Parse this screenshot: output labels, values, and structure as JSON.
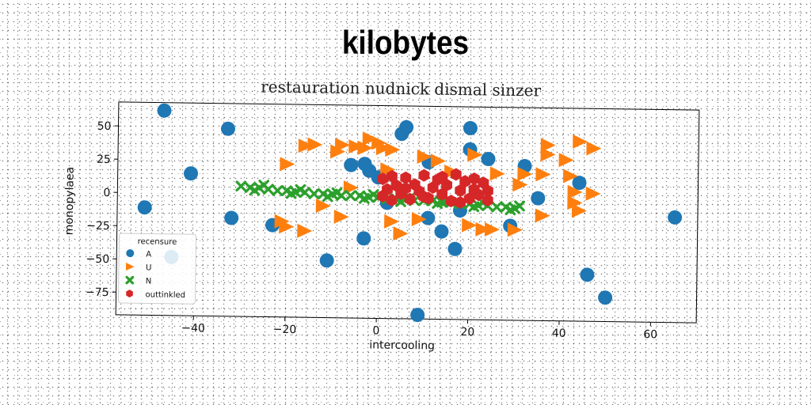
{
  "figure": {
    "title": "kilobytes",
    "subtitle": "restauration nudnick dismal sinzer"
  },
  "chart_data": {
    "type": "scatter",
    "title": "restauration nudnick dismal sinzer",
    "xlabel": "intercooling",
    "ylabel": "monopylaea",
    "xlim": [
      -57,
      70
    ],
    "ylim": [
      -92,
      68
    ],
    "xticks": [
      "−40",
      "−20",
      "0",
      "20",
      "40",
      "60"
    ],
    "xtick_values": [
      -40,
      -20,
      0,
      20,
      40,
      60
    ],
    "yticks": [
      "50",
      "25",
      "0",
      "−25",
      "−50",
      "−75"
    ],
    "ytick_values": [
      50,
      25,
      0,
      -25,
      -50,
      -75
    ],
    "grid": false,
    "legend": {
      "title": "recensure",
      "placement": "lower-left"
    },
    "series": [
      {
        "name": "A",
        "marker": "circle",
        "color": "#1f77b4",
        "points": [
          [
            -47,
            62
          ],
          [
            -33,
            49
          ],
          [
            -41,
            15
          ],
          [
            -51,
            -11
          ],
          [
            -32,
            -18
          ],
          [
            -23,
            -23
          ],
          [
            -45,
            -48
          ],
          [
            -11,
            -49
          ],
          [
            -3,
            -32
          ],
          [
            2,
            -5
          ],
          [
            -6,
            23
          ],
          [
            -3,
            24
          ],
          [
            -2,
            19
          ],
          [
            0,
            14
          ],
          [
            5,
            47
          ],
          [
            6,
            52
          ],
          [
            11,
            26
          ],
          [
            20,
            52
          ],
          [
            20,
            36
          ],
          [
            24,
            29
          ],
          [
            11,
            -16
          ],
          [
            14,
            -26
          ],
          [
            17,
            -39
          ],
          [
            18,
            -10
          ],
          [
            32,
            24
          ],
          [
            35,
            0
          ],
          [
            29,
            -21
          ],
          [
            44,
            12
          ],
          [
            46,
            -57
          ],
          [
            50,
            -74
          ],
          [
            65,
            -13
          ],
          [
            9,
            -89
          ]
        ]
      },
      {
        "name": "U",
        "marker": "triangle-right",
        "color": "#ff7f0e",
        "points": [
          [
            -20,
            23
          ],
          [
            -16,
            37
          ],
          [
            -14,
            38
          ],
          [
            -9,
            33
          ],
          [
            -8,
            38
          ],
          [
            -5,
            37
          ],
          [
            -3,
            36
          ],
          [
            -2,
            43
          ],
          [
            0,
            40
          ],
          [
            1,
            36
          ],
          [
            3,
            35
          ],
          [
            10,
            30
          ],
          [
            13,
            27
          ],
          [
            21,
            32
          ],
          [
            26,
            18
          ],
          [
            32,
            18
          ],
          [
            36,
            18
          ],
          [
            37,
            40
          ],
          [
            37,
            33
          ],
          [
            41,
            29
          ],
          [
            42,
            17
          ],
          [
            43,
            5
          ],
          [
            44,
            43
          ],
          [
            47,
            38
          ],
          [
            -21,
            -20
          ],
          [
            -20,
            -24
          ],
          [
            -16,
            -27
          ],
          [
            -12,
            -8
          ],
          [
            -8,
            -16
          ],
          [
            3,
            -19
          ],
          [
            5,
            -28
          ],
          [
            9,
            -17
          ],
          [
            20,
            -21
          ],
          [
            23,
            -24
          ],
          [
            25,
            -24
          ],
          [
            30,
            -24
          ],
          [
            31,
            10
          ],
          [
            36,
            -13
          ],
          [
            43,
            -3
          ],
          [
            44,
            -9
          ],
          [
            47,
            4
          ],
          [
            -6,
            6
          ],
          [
            2,
            20
          ],
          [
            16,
            19
          ]
        ]
      },
      {
        "name": "N",
        "marker": "x",
        "color": "#2ca02c",
        "points": [
          [
            -30,
            6
          ],
          [
            -26,
            5
          ],
          [
            -22,
            3
          ],
          [
            -18,
            2
          ],
          [
            -14,
            1
          ],
          [
            -10,
            1
          ],
          [
            -6,
            0
          ],
          [
            -2,
            -1
          ],
          [
            2,
            -2
          ],
          [
            6,
            -2
          ],
          [
            10,
            -3
          ],
          [
            14,
            -4
          ],
          [
            18,
            -5
          ],
          [
            22,
            -6
          ],
          [
            26,
            -7
          ],
          [
            30,
            -8
          ],
          [
            -28,
            5
          ],
          [
            -24,
            4
          ],
          [
            -20,
            3
          ],
          [
            -16,
            2
          ],
          [
            -12,
            1
          ],
          [
            -8,
            0
          ],
          [
            -4,
            0
          ],
          [
            0,
            -1
          ],
          [
            4,
            -2
          ],
          [
            8,
            -3
          ],
          [
            12,
            -3
          ],
          [
            16,
            -4
          ],
          [
            20,
            -5
          ],
          [
            24,
            -6
          ],
          [
            28,
            -7
          ],
          [
            -25,
            7
          ],
          [
            -17,
            4
          ],
          [
            -9,
            2
          ],
          [
            -1,
            1
          ],
          [
            7,
            -1
          ],
          [
            15,
            -3
          ],
          [
            23,
            -4
          ],
          [
            31,
            -6
          ],
          [
            -27,
            3
          ],
          [
            -19,
            1
          ],
          [
            -11,
            -1
          ],
          [
            -3,
            -2
          ],
          [
            5,
            -4
          ],
          [
            13,
            -5
          ],
          [
            21,
            -7
          ],
          [
            29,
            -9
          ]
        ]
      },
      {
        "name": "outtinkled",
        "marker": "hexagon",
        "color": "#d62728",
        "points": [
          [
            1,
            13
          ],
          [
            2,
            5
          ],
          [
            3,
            -3
          ],
          [
            4,
            8
          ],
          [
            5,
            2
          ],
          [
            6,
            14
          ],
          [
            7,
            -2
          ],
          [
            8,
            9
          ],
          [
            9,
            4
          ],
          [
            10,
            16
          ],
          [
            11,
            -1
          ],
          [
            12,
            7
          ],
          [
            13,
            13
          ],
          [
            14,
            2
          ],
          [
            15,
            9
          ],
          [
            16,
            -3
          ],
          [
            17,
            17
          ],
          [
            18,
            5
          ],
          [
            19,
            12
          ],
          [
            20,
            -1
          ],
          [
            21,
            6
          ],
          [
            22,
            2
          ],
          [
            23,
            11
          ],
          [
            24,
            -2
          ],
          [
            1,
            0
          ],
          [
            3,
            15
          ],
          [
            6,
            6
          ],
          [
            10,
            0
          ],
          [
            14,
            15
          ],
          [
            18,
            -4
          ],
          [
            21,
            14
          ],
          [
            24,
            5
          ]
        ]
      }
    ]
  }
}
